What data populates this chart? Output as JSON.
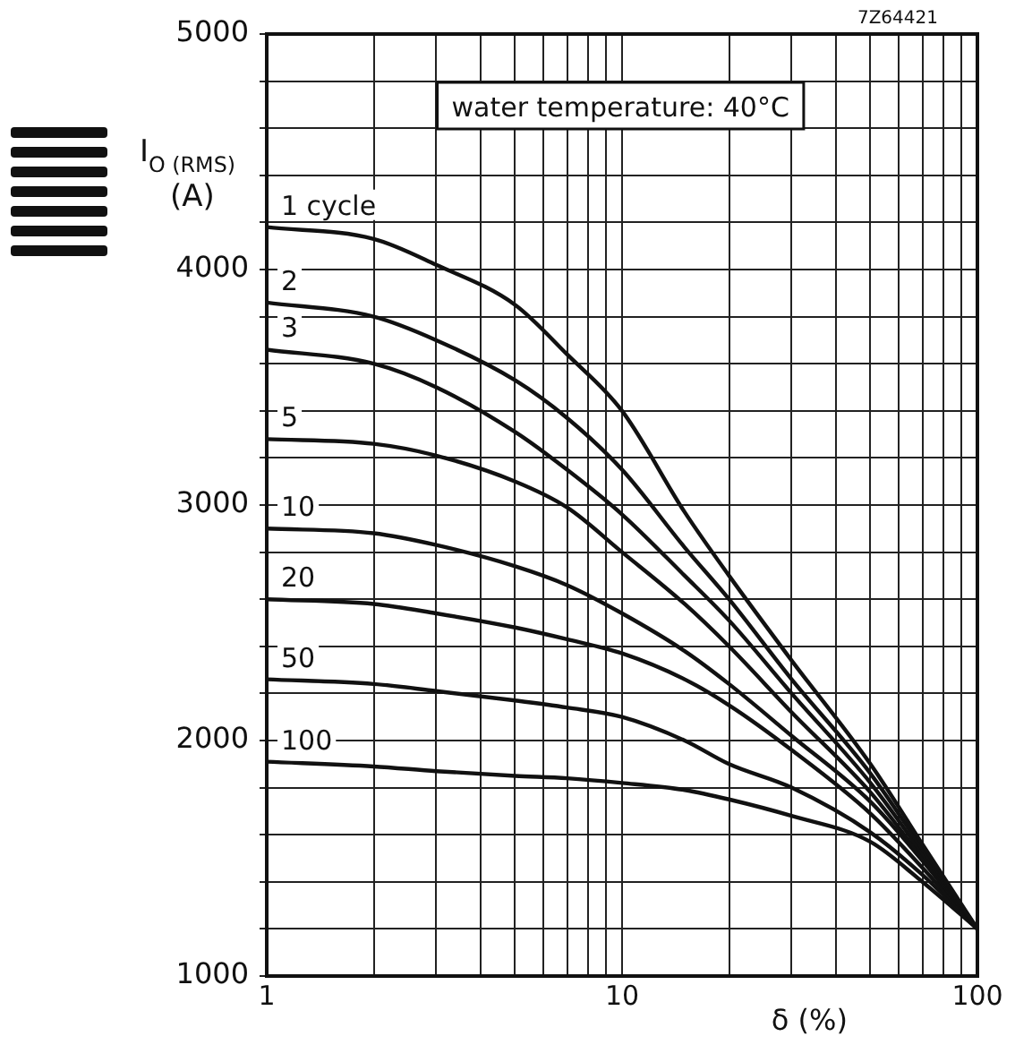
{
  "chart_data": {
    "type": "line",
    "xlabel": "δ (%)",
    "ylabel": "I$_{O (RMS)}$ (A)",
    "annotations": [
      "water temperature: 40°C",
      "7Z64421"
    ],
    "x": [
      1,
      2,
      3,
      5,
      7,
      10,
      15,
      20,
      30,
      50,
      70,
      100
    ],
    "series": [
      {
        "name": "1 cycle",
        "color": "#111111",
        "values": [
          4180,
          4130,
          4020,
          3850,
          3640,
          3400,
          2970,
          2700,
          2340,
          1900,
          1560,
          1200
        ]
      },
      {
        "name": "2",
        "color": "#111111",
        "values": [
          3860,
          3800,
          3700,
          3530,
          3370,
          3150,
          2820,
          2600,
          2260,
          1860,
          1540,
          1200
        ]
      },
      {
        "name": "3",
        "color": "#111111",
        "values": [
          3660,
          3600,
          3500,
          3310,
          3150,
          2960,
          2700,
          2510,
          2200,
          1820,
          1520,
          1200
        ]
      },
      {
        "name": "5",
        "color": "#111111",
        "values": [
          3280,
          3260,
          3210,
          3100,
          2990,
          2800,
          2580,
          2400,
          2120,
          1780,
          1500,
          1200
        ]
      },
      {
        "name": "10",
        "color": "#111111",
        "values": [
          2900,
          2880,
          2830,
          2740,
          2660,
          2540,
          2380,
          2240,
          2020,
          1740,
          1490,
          1200
        ]
      },
      {
        "name": "20",
        "color": "#111111",
        "values": [
          2600,
          2580,
          2540,
          2480,
          2430,
          2370,
          2260,
          2150,
          1960,
          1690,
          1460,
          1200
        ]
      },
      {
        "name": "50",
        "color": "#111111",
        "values": [
          2260,
          2240,
          2210,
          2170,
          2140,
          2100,
          2000,
          1900,
          1800,
          1610,
          1430,
          1200
        ]
      },
      {
        "name": "100",
        "color": "#111111",
        "values": [
          1910,
          1890,
          1870,
          1850,
          1840,
          1820,
          1790,
          1750,
          1680,
          1570,
          1400,
          1200
        ]
      }
    ],
    "log": "x",
    "xlim": [
      1,
      100
    ],
    "ylim": [
      1000,
      5000
    ],
    "xticks": [
      1,
      {
        "value": 2,
        "label": null
      },
      {
        "value": 3,
        "label": null
      },
      {
        "value": 4,
        "label": null
      },
      {
        "value": 5,
        "label": null
      },
      {
        "value": 6,
        "label": null
      },
      {
        "value": 7,
        "label": null
      },
      {
        "value": 8,
        "label": null
      },
      {
        "value": 9,
        "label": null
      },
      10,
      {
        "value": 20,
        "label": null
      },
      {
        "value": 30,
        "label": null
      },
      {
        "value": 40,
        "label": null
      },
      {
        "value": 50,
        "label": null
      },
      {
        "value": 60,
        "label": null
      },
      {
        "value": 70,
        "label": null
      },
      {
        "value": 80,
        "label": null
      },
      {
        "value": 90,
        "label": null
      },
      100
    ],
    "yticks": [
      1000,
      {
        "value": 1200,
        "label": null
      },
      {
        "value": 1400,
        "label": null
      },
      {
        "value": 1600,
        "label": null
      },
      {
        "value": 1800,
        "label": null
      },
      2000,
      {
        "value": 2200,
        "label": null
      },
      {
        "value": 2400,
        "label": null
      },
      {
        "value": 2600,
        "label": null
      },
      {
        "value": 2800,
        "label": null
      },
      3000,
      {
        "value": 3200,
        "label": null
      },
      {
        "value": 3400,
        "label": null
      },
      {
        "value": 3600,
        "label": null
      },
      {
        "value": 3800,
        "label": null
      },
      4000,
      {
        "value": 4200,
        "label": null
      },
      {
        "value": 4400,
        "label": null
      },
      {
        "value": 4600,
        "label": null
      },
      {
        "value": 4800,
        "label": null
      },
      5000
    ],
    "grid": true,
    "legend": false,
    "marker": "none",
    "line_style": "solid"
  }
}
